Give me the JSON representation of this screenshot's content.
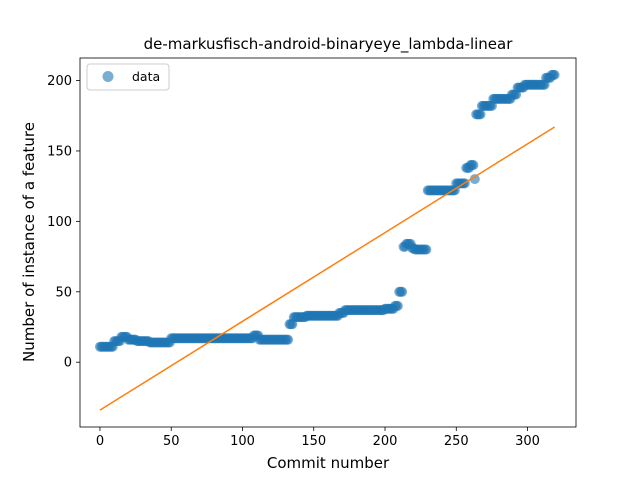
{
  "chart_data": {
    "type": "scatter",
    "title": "de-markusfisch-android-binaryeye_lambda-linear",
    "xlabel": "Commit number",
    "ylabel": "Number of instance of a feature",
    "xlim": [
      -14,
      334
    ],
    "ylim": [
      -46,
      216
    ],
    "xticks": [
      0,
      50,
      100,
      150,
      200,
      250,
      300
    ],
    "yticks": [
      0,
      50,
      100,
      150,
      200
    ],
    "legend": {
      "position": "top-left",
      "label": "data"
    },
    "colors": {
      "points": "#1f77b4",
      "fit_line": "#ff7f0e"
    },
    "fit_line": {
      "x": [
        0,
        319
      ],
      "y": [
        -34,
        167
      ]
    },
    "series": [
      {
        "name": "data",
        "segments": [
          {
            "x_start": 0,
            "x_end": 10,
            "y": 11
          },
          {
            "x_start": 10,
            "x_end": 15,
            "y": 15
          },
          {
            "x_start": 15,
            "x_end": 20,
            "y": 18
          },
          {
            "x_start": 20,
            "x_end": 26,
            "y": 16
          },
          {
            "x_start": 26,
            "x_end": 35,
            "y": 15
          },
          {
            "x_start": 35,
            "x_end": 50,
            "y": 14
          },
          {
            "x_start": 50,
            "x_end": 108,
            "y": 17
          },
          {
            "x_start": 108,
            "x_end": 112,
            "y": 19
          },
          {
            "x_start": 112,
            "x_end": 133,
            "y": 16
          },
          {
            "x_start": 133,
            "x_end": 136,
            "y": 27
          },
          {
            "x_start": 136,
            "x_end": 145,
            "y": 32
          },
          {
            "x_start": 145,
            "x_end": 168,
            "y": 33
          },
          {
            "x_start": 168,
            "x_end": 172,
            "y": 35
          },
          {
            "x_start": 172,
            "x_end": 185,
            "y": 37
          },
          {
            "x_start": 185,
            "x_end": 200,
            "y": 37
          },
          {
            "x_start": 200,
            "x_end": 207,
            "y": 38
          },
          {
            "x_start": 207,
            "x_end": 210,
            "y": 40
          },
          {
            "x_start": 210,
            "x_end": 213,
            "y": 50
          },
          {
            "x_start": 213,
            "x_end": 215,
            "y": 82
          },
          {
            "x_start": 215,
            "x_end": 219,
            "y": 84
          },
          {
            "x_start": 219,
            "x_end": 221,
            "y": 81
          },
          {
            "x_start": 221,
            "x_end": 230,
            "y": 80
          },
          {
            "x_start": 230,
            "x_end": 250,
            "y": 122
          },
          {
            "x_start": 250,
            "x_end": 257,
            "y": 127
          },
          {
            "x_start": 257,
            "x_end": 260,
            "y": 138
          },
          {
            "x_start": 260,
            "x_end": 263,
            "y": 140
          },
          {
            "x_start": 263,
            "x_end": 264,
            "y": 130
          },
          {
            "x_start": 264,
            "x_end": 268,
            "y": 176
          },
          {
            "x_start": 268,
            "x_end": 276,
            "y": 182
          },
          {
            "x_start": 276,
            "x_end": 289,
            "y": 187
          },
          {
            "x_start": 289,
            "x_end": 293,
            "y": 190
          },
          {
            "x_start": 293,
            "x_end": 298,
            "y": 195
          },
          {
            "x_start": 298,
            "x_end": 313,
            "y": 197
          },
          {
            "x_start": 313,
            "x_end": 317,
            "y": 202
          },
          {
            "x_start": 317,
            "x_end": 320,
            "y": 204
          }
        ]
      }
    ]
  }
}
